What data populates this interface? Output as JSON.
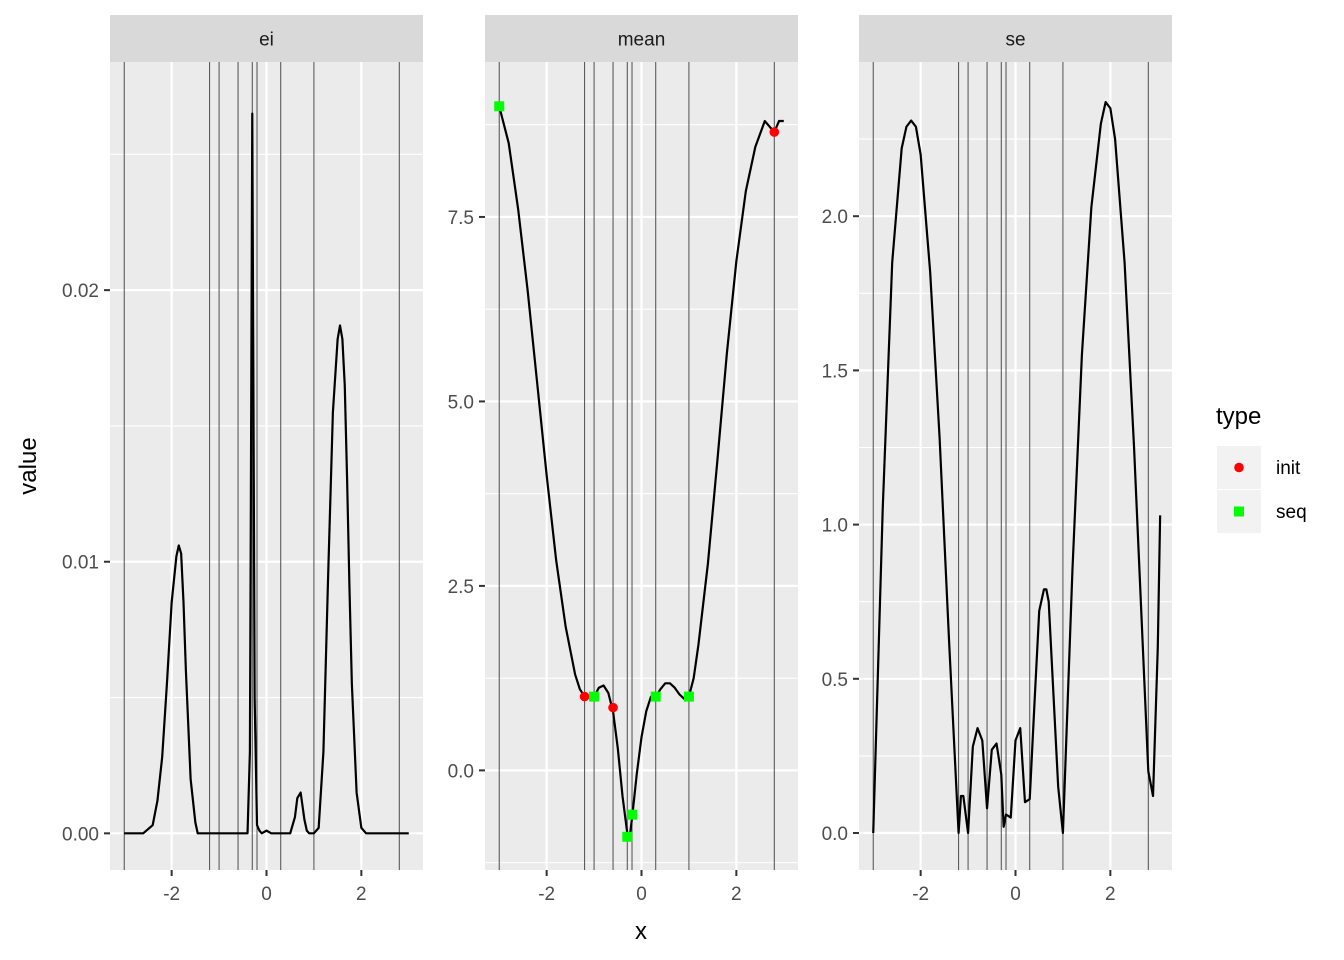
{
  "figure": {
    "ylabel": "value",
    "xlabel": "x",
    "legend": {
      "title": "type",
      "position": "right",
      "items": [
        {
          "label": "init",
          "color": "#ff0000",
          "shape": "circle"
        },
        {
          "label": "seq",
          "color": "#00ff00",
          "shape": "square"
        }
      ]
    },
    "colors": {
      "panel_background": "#ebebeb",
      "strip_background": "#d9d9d9",
      "grid": "#ffffff",
      "curve": "#000000",
      "vline": "#4d4d4d"
    }
  },
  "chart_data": [
    {
      "type": "line",
      "facet": "ei",
      "xlim": [
        -3.3,
        3.3
      ],
      "ylim": [
        -0.00135,
        0.0284
      ],
      "x_ticks": [
        -2,
        0,
        2
      ],
      "x_tick_labels": [
        "-2",
        "0",
        "2"
      ],
      "y_ticks": [
        0,
        0.01,
        0.02
      ],
      "y_tick_labels": [
        "0.00",
        "0.01",
        "0.02"
      ],
      "vlines": [
        -3,
        -1.2,
        -1.0,
        -0.6,
        -0.3,
        -0.2,
        0.3,
        1.0,
        2.8
      ],
      "series": [
        {
          "x": [
            -3.0,
            -2.6,
            -2.4,
            -2.3,
            -2.2,
            -2.1,
            -2.0,
            -1.9,
            -1.85,
            -1.8,
            -1.75,
            -1.7,
            -1.6,
            -1.5,
            -1.45,
            -1.4,
            -1.3,
            -0.5,
            -0.4,
            -0.35,
            -0.33,
            -0.3,
            -0.28,
            -0.25,
            -0.2,
            -0.15,
            -0.1,
            0.0,
            0.1,
            0.3,
            0.5,
            0.6,
            0.65,
            0.72,
            0.8,
            0.85,
            0.9,
            1.0,
            1.1,
            1.2,
            1.3,
            1.4,
            1.5,
            1.55,
            1.6,
            1.65,
            1.7,
            1.75,
            1.8,
            1.9,
            2.0,
            2.1,
            2.3,
            3.0
          ],
          "y": [
            0.0,
            0.0,
            0.0003,
            0.0012,
            0.0028,
            0.0055,
            0.0085,
            0.0102,
            0.0106,
            0.0103,
            0.0085,
            0.006,
            0.002,
            0.0004,
            0.0,
            0.0,
            0.0,
            0.0,
            0.0,
            0.003,
            0.012,
            0.0265,
            0.018,
            0.005,
            0.0003,
            0.0001,
            0.0,
            0.0001,
            0.0,
            0.0,
            0.0,
            0.0006,
            0.0013,
            0.0015,
            0.0005,
            0.0001,
            0.0,
            0.0,
            0.0002,
            0.003,
            0.0095,
            0.0155,
            0.0182,
            0.0187,
            0.0182,
            0.0165,
            0.013,
            0.009,
            0.0055,
            0.0015,
            0.0002,
            0.0,
            0.0,
            0.0
          ]
        }
      ],
      "points": []
    },
    {
      "type": "line",
      "facet": "mean",
      "xlim": [
        -3.3,
        3.3
      ],
      "ylim": [
        -1.35,
        9.6
      ],
      "x_ticks": [
        -2,
        0,
        2
      ],
      "x_tick_labels": [
        "-2",
        "0",
        "2"
      ],
      "y_ticks": [
        0,
        2.5,
        5,
        7.5
      ],
      "y_tick_labels": [
        "0.0",
        "2.5",
        "5.0",
        "7.5"
      ],
      "vlines": [
        -3,
        -1.2,
        -1.0,
        -0.6,
        -0.3,
        -0.2,
        0.3,
        1.0,
        2.8
      ],
      "series": [
        {
          "x": [
            -3.0,
            -2.8,
            -2.6,
            -2.4,
            -2.2,
            -2.0,
            -1.8,
            -1.6,
            -1.4,
            -1.3,
            -1.2,
            -1.1,
            -1.0,
            -0.9,
            -0.8,
            -0.7,
            -0.6,
            -0.5,
            -0.4,
            -0.3,
            -0.25,
            -0.2,
            -0.1,
            0.0,
            0.1,
            0.2,
            0.3,
            0.4,
            0.5,
            0.6,
            0.7,
            0.8,
            0.9,
            1.0,
            1.1,
            1.2,
            1.4,
            1.6,
            1.8,
            2.0,
            2.2,
            2.4,
            2.6,
            2.8,
            2.9,
            3.0
          ],
          "y": [
            9.0,
            8.5,
            7.6,
            6.5,
            5.25,
            4.0,
            2.85,
            1.95,
            1.3,
            1.1,
            1.0,
            1.0,
            1.0,
            1.12,
            1.15,
            1.05,
            0.8,
            0.3,
            -0.35,
            -0.85,
            -0.9,
            -0.65,
            -0.05,
            0.45,
            0.8,
            1.0,
            1.0,
            1.1,
            1.18,
            1.18,
            1.12,
            1.03,
            0.97,
            1.0,
            1.25,
            1.7,
            2.8,
            4.2,
            5.65,
            6.9,
            7.85,
            8.45,
            8.8,
            8.65,
            8.8,
            8.8
          ]
        }
      ],
      "points": [
        {
          "type": "init",
          "x": -1.2,
          "y": 1.0
        },
        {
          "type": "init",
          "x": -0.6,
          "y": 0.85
        },
        {
          "type": "init",
          "x": 2.8,
          "y": 8.65
        },
        {
          "type": "seq",
          "x": -3.0,
          "y": 9.0
        },
        {
          "type": "seq",
          "x": -1.0,
          "y": 1.0
        },
        {
          "type": "seq",
          "x": -0.3,
          "y": -0.9
        },
        {
          "type": "seq",
          "x": -0.2,
          "y": -0.6
        },
        {
          "type": "seq",
          "x": 0.3,
          "y": 1.0
        },
        {
          "type": "seq",
          "x": 1.0,
          "y": 1.0
        }
      ]
    },
    {
      "type": "line",
      "facet": "se",
      "xlim": [
        -3.3,
        3.3
      ],
      "ylim": [
        -0.12,
        2.5
      ],
      "x_ticks": [
        -2,
        0,
        2
      ],
      "x_tick_labels": [
        "-2",
        "0",
        "2"
      ],
      "y_ticks": [
        0,
        0.5,
        1,
        1.5,
        2
      ],
      "y_tick_labels": [
        "0.0",
        "0.5",
        "1.0",
        "1.5",
        "2.0"
      ],
      "vlines": [
        -3,
        -1.2,
        -1.0,
        -0.6,
        -0.3,
        -0.2,
        0.3,
        1.0,
        2.8
      ],
      "series": [
        {
          "x": [
            -3.0,
            -2.8,
            -2.6,
            -2.4,
            -2.3,
            -2.2,
            -2.1,
            -2.0,
            -1.8,
            -1.6,
            -1.4,
            -1.2,
            -1.15,
            -1.1,
            -1.0,
            -0.9,
            -0.8,
            -0.7,
            -0.6,
            -0.5,
            -0.4,
            -0.3,
            -0.25,
            -0.2,
            -0.1,
            0.0,
            0.1,
            0.2,
            0.3,
            0.4,
            0.5,
            0.6,
            0.65,
            0.7,
            0.8,
            0.9,
            1.0,
            1.2,
            1.4,
            1.6,
            1.8,
            1.9,
            2.0,
            2.1,
            2.3,
            2.5,
            2.7,
            2.8,
            2.9,
            3.0,
            3.05
          ],
          "y": [
            0.0,
            1.05,
            1.85,
            2.22,
            2.29,
            2.31,
            2.29,
            2.2,
            1.82,
            1.28,
            0.62,
            0.0,
            0.12,
            0.12,
            0.0,
            0.28,
            0.34,
            0.3,
            0.08,
            0.27,
            0.29,
            0.19,
            0.02,
            0.06,
            0.05,
            0.3,
            0.34,
            0.1,
            0.11,
            0.42,
            0.72,
            0.79,
            0.79,
            0.75,
            0.45,
            0.15,
            0.0,
            0.85,
            1.55,
            2.03,
            2.3,
            2.37,
            2.35,
            2.25,
            1.85,
            1.25,
            0.55,
            0.2,
            0.12,
            0.6,
            1.03
          ]
        }
      ],
      "points": []
    }
  ]
}
